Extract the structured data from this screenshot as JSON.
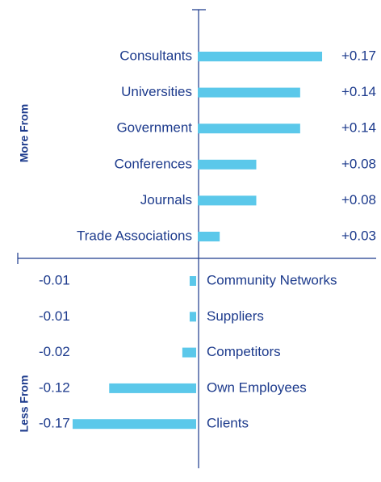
{
  "chart_data": {
    "type": "diverging-bar",
    "group_labels": [
      "More From",
      "Less From"
    ],
    "categories": [
      "Consultants",
      "Universities",
      "Government",
      "Conferences",
      "Journals",
      "Trade Associations",
      "Community Networks",
      "Suppliers",
      "Competitors",
      "Own Employees",
      "Clients"
    ],
    "values": [
      0.17,
      0.14,
      0.14,
      0.08,
      0.08,
      0.03,
      -0.01,
      -0.01,
      -0.02,
      -0.12,
      -0.17
    ],
    "value_labels": [
      "+0.17",
      "+0.14",
      "+0.14",
      "+0.08",
      "+0.08",
      "+0.03",
      "-0.01",
      "-0.01",
      "-0.02",
      "-0.12",
      "-0.17"
    ],
    "color": "#5bc8ea",
    "xlim": [
      -0.245,
      0.245
    ]
  }
}
